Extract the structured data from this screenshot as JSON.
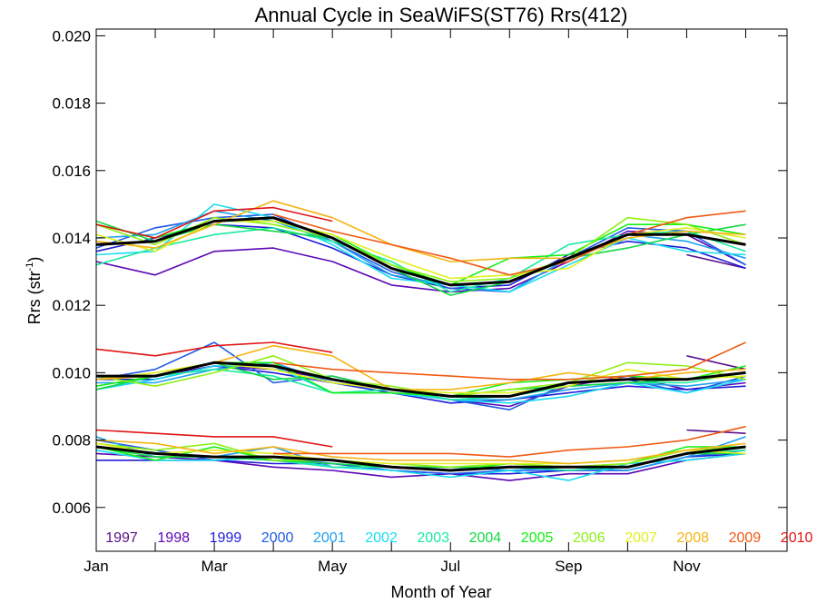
{
  "chart_data": {
    "type": "line",
    "title": "Annual Cycle in SeaWiFS(ST76) Rrs(412)",
    "xlabel": "Month of Year",
    "ylabel": {
      "base": "Rrs (str",
      "sup": "-1",
      "end": ")"
    },
    "xlim": [
      1,
      12.7
    ],
    "ylim": [
      0.0047,
      0.0202
    ],
    "x_ticks": [
      {
        "value": 1,
        "label": "Jan"
      },
      {
        "value": 3,
        "label": "Mar"
      },
      {
        "value": 5,
        "label": "May"
      },
      {
        "value": 7,
        "label": "Jul"
      },
      {
        "value": 9,
        "label": "Sep"
      },
      {
        "value": 11,
        "label": "Nov"
      }
    ],
    "y_ticks": [
      {
        "value": 0.006,
        "label": "0.006"
      },
      {
        "value": 0.008,
        "label": "0.008"
      },
      {
        "value": 0.01,
        "label": "0.010"
      },
      {
        "value": 0.012,
        "label": "0.012"
      },
      {
        "value": 0.014,
        "label": "0.014"
      },
      {
        "value": 0.016,
        "label": "0.016"
      },
      {
        "value": 0.018,
        "label": "0.018"
      },
      {
        "value": 0.02,
        "label": "0.020"
      }
    ],
    "grid": false,
    "legend_position": "bottom",
    "x": [
      1,
      2,
      3,
      4,
      5,
      6,
      7,
      8,
      9,
      10,
      11,
      12
    ],
    "series": [
      {
        "name": "1997",
        "color": "#5a0f8a",
        "groups": [
          [
            null,
            null,
            null,
            null,
            null,
            null,
            null,
            null,
            null,
            null,
            0.0135,
            0.0131
          ],
          [
            null,
            null,
            null,
            null,
            null,
            null,
            null,
            null,
            null,
            null,
            0.0105,
            0.0101
          ],
          [
            null,
            null,
            null,
            null,
            null,
            null,
            null,
            null,
            null,
            null,
            0.0083,
            0.0082
          ]
        ]
      },
      {
        "name": "1998",
        "color": "#5b07b5",
        "groups": [
          [
            0.0133,
            0.0129,
            0.0136,
            0.0137,
            0.0133,
            0.0126,
            0.0124,
            0.0125,
            0.0133,
            0.0142,
            0.0141,
            0.0132
          ],
          [
            0.0099,
            0.0099,
            0.0102,
            0.0101,
            0.0098,
            0.0095,
            0.0092,
            0.009,
            0.0096,
            0.0099,
            0.0095,
            0.0097
          ],
          [
            0.0076,
            0.0075,
            0.0074,
            0.0072,
            0.0071,
            0.0069,
            0.007,
            0.0068,
            0.007,
            0.007,
            0.0074,
            0.0076
          ]
        ]
      },
      {
        "name": "1999",
        "color": "#1e1ed9",
        "groups": [
          [
            0.0136,
            0.014,
            0.0144,
            0.0143,
            0.0137,
            0.0129,
            0.0125,
            0.0126,
            0.0135,
            0.0139,
            0.0137,
            0.0131
          ],
          [
            0.0098,
            0.0098,
            0.0102,
            0.01,
            0.0097,
            0.0094,
            0.0091,
            0.0092,
            0.0094,
            0.0096,
            0.0095,
            0.0096
          ],
          [
            0.0074,
            0.0074,
            0.0074,
            0.0073,
            0.0073,
            0.0071,
            0.007,
            0.007,
            0.0071,
            0.0071,
            0.0075,
            0.0076
          ]
        ]
      },
      {
        "name": "2000",
        "color": "#1f5ae6",
        "groups": [
          [
            0.0137,
            0.0143,
            0.0146,
            0.0147,
            0.0139,
            0.013,
            0.0125,
            0.0124,
            0.0134,
            0.0143,
            0.0142,
            0.0132
          ],
          [
            0.0098,
            0.0101,
            0.0109,
            0.0097,
            0.0099,
            0.0095,
            0.0092,
            0.0089,
            0.0097,
            0.0098,
            0.0094,
            0.0099
          ],
          [
            0.008,
            0.0077,
            0.0074,
            0.0075,
            0.0073,
            0.0071,
            0.007,
            0.0071,
            0.0071,
            0.0071,
            0.0075,
            0.0077
          ]
        ]
      },
      {
        "name": "2001",
        "color": "#1ea0ee",
        "groups": [
          [
            0.014,
            0.0141,
            0.0148,
            0.0145,
            0.0139,
            0.0129,
            0.0126,
            0.0124,
            0.0134,
            0.0141,
            0.0139,
            0.0134
          ],
          [
            0.0097,
            0.0097,
            0.0101,
            0.0103,
            0.0097,
            0.0095,
            0.0092,
            0.0092,
            0.0095,
            0.0097,
            0.0096,
            0.0098
          ],
          [
            0.0081,
            0.0075,
            0.0075,
            0.0078,
            0.0072,
            0.0072,
            0.0072,
            0.0071,
            0.0072,
            0.0071,
            0.0075,
            0.0081
          ]
        ]
      },
      {
        "name": "2002",
        "color": "#19dcf0",
        "groups": [
          [
            0.0135,
            0.0136,
            0.015,
            0.0146,
            0.0138,
            0.0128,
            0.0126,
            0.0124,
            0.0132,
            0.014,
            0.0136,
            0.0135
          ],
          [
            0.0095,
            0.0098,
            0.0102,
            0.0102,
            0.0094,
            0.0094,
            0.0092,
            0.0091,
            0.0093,
            0.0097,
            0.0094,
            0.0098
          ],
          [
            0.0077,
            0.0074,
            0.0074,
            0.0075,
            0.0072,
            0.0071,
            0.0069,
            0.0071,
            0.0068,
            0.0073,
            0.0074,
            0.0076
          ]
        ]
      },
      {
        "name": "2003",
        "color": "#19eba0",
        "groups": [
          [
            0.0132,
            0.0137,
            0.0141,
            0.0143,
            0.0139,
            0.0133,
            0.0124,
            0.0128,
            0.0138,
            0.0141,
            0.0142,
            0.0136
          ],
          [
            0.0095,
            0.0099,
            0.0101,
            0.0099,
            0.0094,
            0.0095,
            0.0092,
            0.0093,
            0.0096,
            0.0097,
            0.0097,
            0.01
          ],
          [
            0.0078,
            0.0076,
            0.0075,
            0.0074,
            0.0072,
            0.0072,
            0.0071,
            0.0072,
            0.0071,
            0.0072,
            0.0076,
            0.0077
          ]
        ]
      },
      {
        "name": "2004",
        "color": "#14d746",
        "groups": [
          [
            0.0145,
            0.0139,
            0.0144,
            0.0142,
            0.014,
            0.0131,
            0.0123,
            0.0127,
            0.0134,
            0.0137,
            0.0141,
            0.0144
          ],
          [
            0.0095,
            0.0099,
            0.0103,
            0.0098,
            0.0099,
            0.0095,
            0.0093,
            0.0095,
            0.0096,
            0.0097,
            0.0098,
            0.01
          ],
          [
            0.0078,
            0.0075,
            0.0075,
            0.0074,
            0.0073,
            0.0072,
            0.0072,
            0.0072,
            0.0072,
            0.0072,
            0.0076,
            0.0076
          ]
        ]
      },
      {
        "name": "2005",
        "color": "#14f014",
        "groups": [
          [
            0.0144,
            0.014,
            0.0145,
            0.0145,
            0.0141,
            0.0132,
            0.0126,
            0.0134,
            0.0135,
            0.0144,
            0.0144,
            0.0141
          ],
          [
            0.0096,
            0.0099,
            0.0103,
            0.0103,
            0.0094,
            0.0094,
            0.0093,
            0.0097,
            0.0098,
            0.0099,
            0.0098,
            0.0102
          ],
          [
            0.0078,
            0.0074,
            0.0078,
            0.0074,
            0.0074,
            0.0072,
            0.0071,
            0.0073,
            0.0072,
            0.0073,
            0.0078,
            0.0078
          ]
        ]
      },
      {
        "name": "2006",
        "color": "#8ef014",
        "groups": [
          [
            0.0144,
            0.0138,
            0.0146,
            0.0144,
            0.014,
            0.0132,
            0.0127,
            0.0128,
            0.0134,
            0.0146,
            0.0144,
            0.0138
          ],
          [
            0.0099,
            0.0096,
            0.01,
            0.0105,
            0.0098,
            0.0096,
            0.0093,
            0.0095,
            0.0097,
            0.0103,
            0.0102,
            0.0098
          ],
          [
            0.0079,
            0.0077,
            0.0079,
            0.0074,
            0.0074,
            0.0073,
            0.0072,
            0.0073,
            0.0072,
            0.0073,
            0.0077,
            0.0078
          ]
        ]
      },
      {
        "name": "2007",
        "color": "#e1f01e",
        "groups": [
          [
            0.0141,
            0.0136,
            0.0145,
            0.0145,
            0.0141,
            0.0134,
            0.0128,
            0.0129,
            0.0131,
            0.0141,
            0.0143,
            0.014
          ],
          [
            0.0098,
            0.01,
            0.0103,
            0.0101,
            0.0097,
            0.0095,
            0.0094,
            0.0094,
            0.0096,
            0.0101,
            0.0098,
            0.0099
          ],
          [
            0.0079,
            0.0076,
            0.0077,
            0.0076,
            0.0074,
            0.0073,
            0.0073,
            0.0073,
            0.0073,
            0.0074,
            0.0077,
            0.0076
          ]
        ]
      },
      {
        "name": "2008",
        "color": "#f5b414",
        "groups": [
          [
            0.0139,
            0.0137,
            0.0144,
            0.0151,
            0.0146,
            0.0138,
            0.0133,
            0.0134,
            0.0134,
            0.014,
            0.0142,
            0.0141
          ],
          [
            0.0098,
            0.0099,
            0.0103,
            0.0108,
            0.0105,
            0.0095,
            0.0095,
            0.0097,
            0.01,
            0.0098,
            0.01,
            0.0101
          ],
          [
            0.008,
            0.0079,
            0.0076,
            0.0078,
            0.0075,
            0.0074,
            0.0074,
            0.0074,
            0.0073,
            0.0074,
            0.0077,
            0.0079
          ]
        ]
      },
      {
        "name": "2009",
        "color": "#f05a14",
        "groups": [
          [
            null,
            null,
            null,
            0.0147,
            0.0142,
            0.0138,
            0.0134,
            0.0129,
            0.0133,
            0.0141,
            0.0146,
            0.0148
          ],
          [
            null,
            null,
            null,
            0.0103,
            0.0101,
            0.01,
            0.0099,
            0.0098,
            0.0098,
            0.0099,
            0.0101,
            0.0109
          ],
          [
            null,
            null,
            null,
            0.0076,
            0.0076,
            0.0076,
            0.0076,
            0.0075,
            0.0077,
            0.0078,
            0.008,
            0.0084
          ]
        ]
      },
      {
        "name": "2010",
        "color": "#e11414",
        "groups": [
          [
            0.0144,
            0.014,
            0.0148,
            0.0149,
            0.0145,
            null,
            null,
            null,
            null,
            null,
            null,
            null
          ],
          [
            0.0107,
            0.0105,
            0.0108,
            0.0109,
            0.0106,
            null,
            null,
            null,
            null,
            null,
            null,
            null
          ],
          [
            0.0083,
            0.0082,
            0.0081,
            0.0081,
            0.0078,
            null,
            null,
            null,
            null,
            null,
            null,
            null
          ]
        ]
      }
    ],
    "mean": {
      "color": "#000000",
      "groups": [
        [
          0.0138,
          0.0139,
          0.0145,
          0.0146,
          0.014,
          0.0131,
          0.0126,
          0.0127,
          0.0134,
          0.0141,
          0.0141,
          0.0138
        ],
        [
          0.0099,
          0.0099,
          0.0103,
          0.0102,
          0.0098,
          0.0095,
          0.0093,
          0.0093,
          0.0097,
          0.0098,
          0.0098,
          0.01
        ],
        [
          0.0078,
          0.0076,
          0.0075,
          0.0075,
          0.0074,
          0.0072,
          0.0071,
          0.0072,
          0.0072,
          0.0072,
          0.0076,
          0.0078
        ]
      ]
    }
  }
}
